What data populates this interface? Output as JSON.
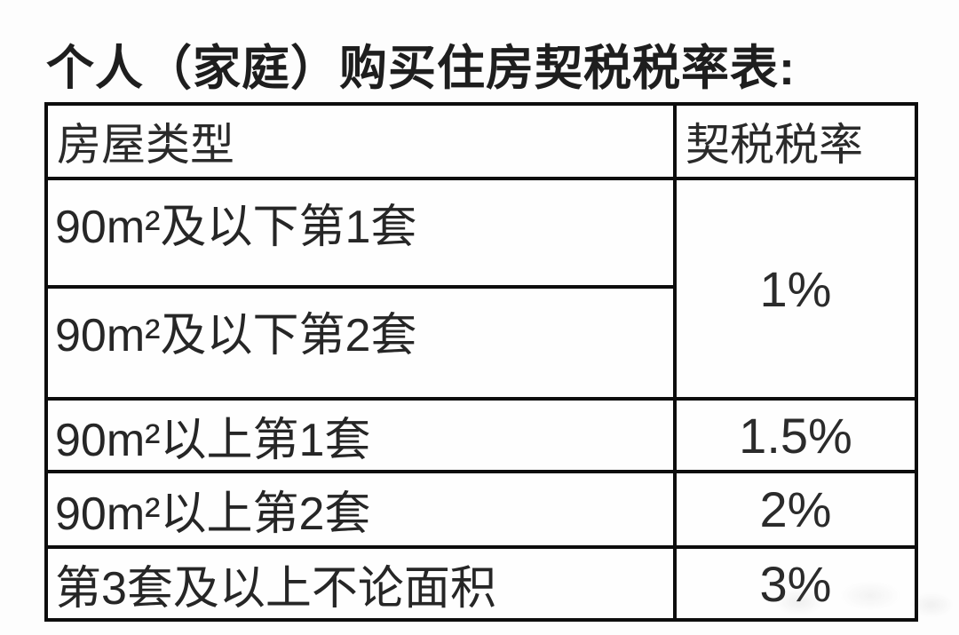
{
  "title": "个人（家庭）购买住房契税税率表:",
  "table": {
    "headers": [
      "房屋类型",
      "契税税率"
    ],
    "rows": [
      {
        "type": "90m²及以下第1套",
        "rate": "1%",
        "rate_rowspan": 2
      },
      {
        "type": "90m²及以下第2套"
      },
      {
        "type": "90m²以上第1套",
        "rate": "1.5%"
      },
      {
        "type": "90m²以上第2套",
        "rate": "2%"
      },
      {
        "type": "第3套及以上不论面积",
        "rate": "3%"
      }
    ]
  },
  "colors": {
    "border": "#0d0d0d",
    "text": "#262626",
    "background": "#fdfdfd"
  }
}
